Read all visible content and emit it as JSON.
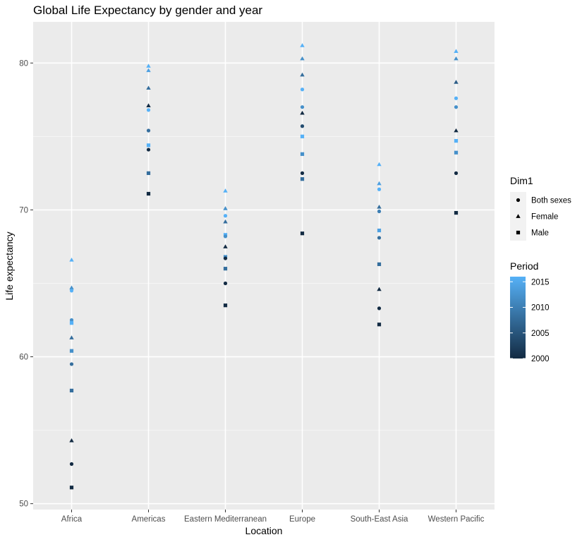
{
  "chart_data": {
    "type": "scatter",
    "title": "Global Life Expectancy by gender and year",
    "xlabel": "Location",
    "ylabel": "Life expectancy",
    "categories": [
      "Africa",
      "Americas",
      "Eastern Mediterranean",
      "Europe",
      "South-East Asia",
      "Western Pacific"
    ],
    "ylim": [
      49.6,
      82.8
    ],
    "yticks": [
      50,
      60,
      70,
      80
    ],
    "grid": true,
    "legend_shape": {
      "title": "Dim1",
      "entries": [
        {
          "label": "Both sexes",
          "shape": "circle"
        },
        {
          "label": "Female",
          "shape": "triangle"
        },
        {
          "label": "Male",
          "shape": "square"
        }
      ]
    },
    "legend_color": {
      "title": "Period",
      "range": [
        2000,
        2016
      ],
      "ticks": [
        2000,
        2005,
        2010,
        2015
      ],
      "low_color": "#132B43",
      "high_color": "#56B1F7"
    },
    "points": [
      {
        "category": "Africa",
        "shape": "triangle",
        "year": 2016,
        "y": 66.6
      },
      {
        "category": "Africa",
        "shape": "triangle",
        "year": 2012,
        "y": 64.7
      },
      {
        "category": "Africa",
        "shape": "circle",
        "year": 2016,
        "y": 64.5
      },
      {
        "category": "Africa",
        "shape": "circle",
        "year": 2012,
        "y": 62.5
      },
      {
        "category": "Africa",
        "shape": "square",
        "year": 2016,
        "y": 62.3
      },
      {
        "category": "Africa",
        "shape": "triangle",
        "year": 2008,
        "y": 61.3
      },
      {
        "category": "Africa",
        "shape": "square",
        "year": 2012,
        "y": 60.4
      },
      {
        "category": "Africa",
        "shape": "circle",
        "year": 2008,
        "y": 59.5
      },
      {
        "category": "Africa",
        "shape": "square",
        "year": 2008,
        "y": 57.7
      },
      {
        "category": "Africa",
        "shape": "triangle",
        "year": 2000,
        "y": 54.3
      },
      {
        "category": "Africa",
        "shape": "circle",
        "year": 2000,
        "y": 52.7
      },
      {
        "category": "Africa",
        "shape": "square",
        "year": 2000,
        "y": 51.1
      },
      {
        "category": "Americas",
        "shape": "triangle",
        "year": 2016,
        "y": 79.8
      },
      {
        "category": "Americas",
        "shape": "triangle",
        "year": 2014,
        "y": 79.5
      },
      {
        "category": "Americas",
        "shape": "triangle",
        "year": 2008,
        "y": 78.3
      },
      {
        "category": "Americas",
        "shape": "triangle",
        "year": 2000,
        "y": 77.1
      },
      {
        "category": "Americas",
        "shape": "circle",
        "year": 2016,
        "y": 76.8
      },
      {
        "category": "Americas",
        "shape": "circle",
        "year": 2008,
        "y": 75.4
      },
      {
        "category": "Americas",
        "shape": "square",
        "year": 2016,
        "y": 74.4
      },
      {
        "category": "Americas",
        "shape": "circle",
        "year": 2000,
        "y": 74.1
      },
      {
        "category": "Americas",
        "shape": "square",
        "year": 2008,
        "y": 72.5
      },
      {
        "category": "Americas",
        "shape": "square",
        "year": 2000,
        "y": 71.1
      },
      {
        "category": "Eastern Mediterranean",
        "shape": "triangle",
        "year": 2016,
        "y": 71.3
      },
      {
        "category": "Eastern Mediterranean",
        "shape": "triangle",
        "year": 2012,
        "y": 70.1
      },
      {
        "category": "Eastern Mediterranean",
        "shape": "circle",
        "year": 2016,
        "y": 69.6
      },
      {
        "category": "Eastern Mediterranean",
        "shape": "triangle",
        "year": 2008,
        "y": 69.2
      },
      {
        "category": "Eastern Mediterranean",
        "shape": "square",
        "year": 2016,
        "y": 68.3
      },
      {
        "category": "Eastern Mediterranean",
        "shape": "circle",
        "year": 2012,
        "y": 68.2
      },
      {
        "category": "Eastern Mediterranean",
        "shape": "triangle",
        "year": 2000,
        "y": 67.5
      },
      {
        "category": "Eastern Mediterranean",
        "shape": "square",
        "year": 2012,
        "y": 66.8
      },
      {
        "category": "Eastern Mediterranean",
        "shape": "circle",
        "year": 2000,
        "y": 66.7
      },
      {
        "category": "Eastern Mediterranean",
        "shape": "square",
        "year": 2008,
        "y": 66.0
      },
      {
        "category": "Eastern Mediterranean",
        "shape": "circle",
        "year": 2000,
        "y": 65.0
      },
      {
        "category": "Eastern Mediterranean",
        "shape": "square",
        "year": 2000,
        "y": 63.5
      },
      {
        "category": "Europe",
        "shape": "triangle",
        "year": 2016,
        "y": 81.2
      },
      {
        "category": "Europe",
        "shape": "triangle",
        "year": 2012,
        "y": 80.3
      },
      {
        "category": "Europe",
        "shape": "triangle",
        "year": 2008,
        "y": 79.2
      },
      {
        "category": "Europe",
        "shape": "circle",
        "year": 2016,
        "y": 78.2
      },
      {
        "category": "Europe",
        "shape": "circle",
        "year": 2012,
        "y": 77.0
      },
      {
        "category": "Europe",
        "shape": "triangle",
        "year": 2000,
        "y": 76.6
      },
      {
        "category": "Europe",
        "shape": "circle",
        "year": 2004,
        "y": 75.7
      },
      {
        "category": "Europe",
        "shape": "square",
        "year": 2016,
        "y": 75.0
      },
      {
        "category": "Europe",
        "shape": "square",
        "year": 2012,
        "y": 73.8
      },
      {
        "category": "Europe",
        "shape": "circle",
        "year": 2000,
        "y": 72.5
      },
      {
        "category": "Europe",
        "shape": "square",
        "year": 2008,
        "y": 72.1
      },
      {
        "category": "Europe",
        "shape": "square",
        "year": 2000,
        "y": 68.4
      },
      {
        "category": "South-East Asia",
        "shape": "triangle",
        "year": 2016,
        "y": 73.1
      },
      {
        "category": "South-East Asia",
        "shape": "triangle",
        "year": 2014,
        "y": 71.8
      },
      {
        "category": "South-East Asia",
        "shape": "circle",
        "year": 2016,
        "y": 71.4
      },
      {
        "category": "South-East Asia",
        "shape": "triangle",
        "year": 2008,
        "y": 70.2
      },
      {
        "category": "South-East Asia",
        "shape": "circle",
        "year": 2010,
        "y": 69.9
      },
      {
        "category": "South-East Asia",
        "shape": "square",
        "year": 2014,
        "y": 68.6
      },
      {
        "category": "South-East Asia",
        "shape": "circle",
        "year": 2008,
        "y": 68.1
      },
      {
        "category": "South-East Asia",
        "shape": "square",
        "year": 2008,
        "y": 66.3
      },
      {
        "category": "South-East Asia",
        "shape": "triangle",
        "year": 2000,
        "y": 64.6
      },
      {
        "category": "South-East Asia",
        "shape": "circle",
        "year": 2000,
        "y": 63.3
      },
      {
        "category": "South-East Asia",
        "shape": "square",
        "year": 2000,
        "y": 62.2
      },
      {
        "category": "Western Pacific",
        "shape": "triangle",
        "year": 2016,
        "y": 80.8
      },
      {
        "category": "Western Pacific",
        "shape": "triangle",
        "year": 2012,
        "y": 80.3
      },
      {
        "category": "Western Pacific",
        "shape": "triangle",
        "year": 2006,
        "y": 78.7
      },
      {
        "category": "Western Pacific",
        "shape": "circle",
        "year": 2016,
        "y": 77.6
      },
      {
        "category": "Western Pacific",
        "shape": "circle",
        "year": 2012,
        "y": 77.0
      },
      {
        "category": "Western Pacific",
        "shape": "triangle",
        "year": 2000,
        "y": 75.4
      },
      {
        "category": "Western Pacific",
        "shape": "square",
        "year": 2016,
        "y": 74.7
      },
      {
        "category": "Western Pacific",
        "shape": "square",
        "year": 2012,
        "y": 73.9
      },
      {
        "category": "Western Pacific",
        "shape": "circle",
        "year": 2000,
        "y": 72.5
      },
      {
        "category": "Western Pacific",
        "shape": "square",
        "year": 2000,
        "y": 69.8
      }
    ]
  }
}
